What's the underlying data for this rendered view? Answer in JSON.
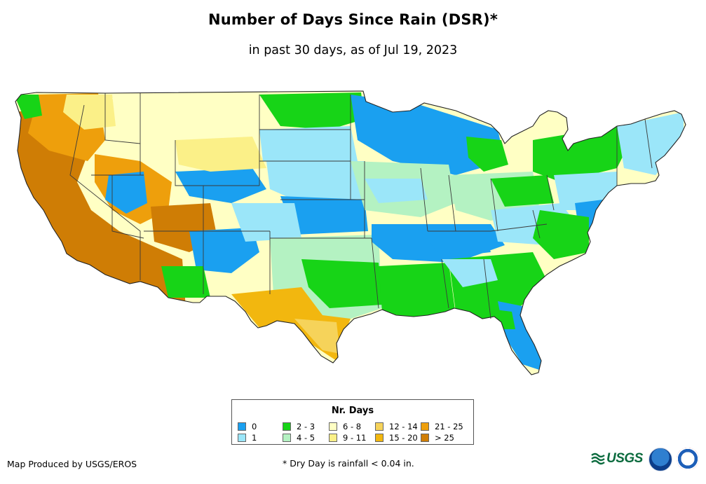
{
  "map": {
    "title": "Number of Days Since Rain (DSR)*",
    "subtitle": "in past 30 days, as of Jul 19, 2023",
    "region": "Contiguous United States",
    "colors": {
      "state_border": "#3a3a3a",
      "ocean": "#ffffff"
    },
    "legend": {
      "title": "Nr. Days",
      "classes": [
        {
          "label": "0",
          "color": "#1aa0f0"
        },
        {
          "label": "1",
          "color": "#9be6f9"
        },
        {
          "label": "2 - 3",
          "color": "#17d417"
        },
        {
          "label": "4 - 5",
          "color": "#b4f2c2"
        },
        {
          "label": "6 - 8",
          "color": "#ffffc4"
        },
        {
          "label": "9 - 11",
          "color": "#fbf088"
        },
        {
          "label": "12 - 14",
          "color": "#f6d35a"
        },
        {
          "label": "15 - 20",
          "color": "#f2b70f"
        },
        {
          "label": "21 - 25",
          "color": "#ee9f0c"
        },
        {
          "label": "> 25",
          "color": "#cf7d05"
        }
      ]
    },
    "footer": {
      "producer": "Map Produced by USGS/EROS",
      "note": "* Dry Day is rainfall < 0.04 in."
    },
    "logos": {
      "usgs": {
        "icon": "usgs-logo",
        "text": "USGS"
      },
      "noaa": {
        "icon": "noaa-logo"
      },
      "nws": {
        "icon": "nws-logo"
      }
    }
  }
}
